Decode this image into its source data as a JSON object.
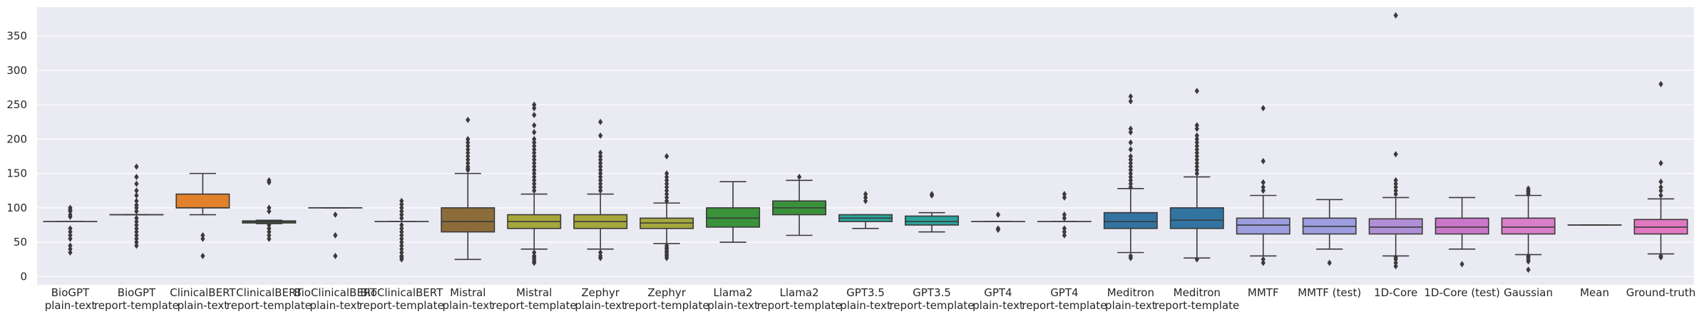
{
  "chart_data": {
    "type": "boxplot",
    "title": "",
    "xlabel": "",
    "ylabel": "",
    "ylim": [
      -12,
      392
    ],
    "yticks": [
      0,
      50,
      100,
      150,
      200,
      250,
      300,
      350
    ],
    "grid": "horizontal",
    "style": {
      "background": "#eaeaf2",
      "grid_color": "#ffffff",
      "line_color": "#3a3a3a"
    },
    "categories": [
      {
        "label": [
          "BioGPT",
          "plain-text"
        ],
        "color": "#3274a1",
        "q1": 80,
        "median": 80,
        "q3": 80,
        "whislo": 80,
        "whishi": 80,
        "fliers": [
          100,
          97,
          95,
          90,
          87,
          70,
          65,
          60,
          55,
          45,
          40,
          35
        ]
      },
      {
        "label": [
          "BioGPT",
          "report-template"
        ],
        "color": "#e1812c",
        "q1": 90,
        "median": 90,
        "q3": 90,
        "whislo": 90,
        "whishi": 90,
        "fliers": [
          160,
          145,
          135,
          125,
          118,
          110,
          104,
          100,
          95,
          85,
          80,
          75,
          70,
          65,
          60,
          55,
          50,
          45
        ]
      },
      {
        "label": [
          "ClinicalBERT",
          "plain-text"
        ],
        "color": "#e1812c",
        "q1": 100,
        "median": 100,
        "q3": 120,
        "whislo": 90,
        "whishi": 150,
        "fliers": [
          60,
          55,
          30
        ]
      },
      {
        "label": [
          "ClinicalBERT",
          "report-template"
        ],
        "color": "#3a923a",
        "q1": 78,
        "median": 80,
        "q3": 81,
        "whislo": 77,
        "whishi": 82,
        "fliers": [
          140,
          137,
          100,
          95,
          75,
          70,
          65,
          60,
          55
        ]
      },
      {
        "label": [
          "BioClinicalBERT",
          "plain-text"
        ],
        "color": "#c03d3e",
        "q1": 100,
        "median": 100,
        "q3": 100,
        "whislo": 100,
        "whishi": 100,
        "fliers": [
          90,
          60,
          30
        ]
      },
      {
        "label": [
          "BioClinicalBERT",
          "report-template"
        ],
        "color": "#9372b2",
        "q1": 80,
        "median": 80,
        "q3": 80,
        "whislo": 80,
        "whishi": 80,
        "fliers": [
          110,
          105,
          100,
          95,
          90,
          85,
          75,
          70,
          65,
          60,
          55,
          50,
          45,
          40,
          35,
          30,
          28,
          25
        ]
      },
      {
        "label": [
          "Mistral",
          "plain-text"
        ],
        "color": "#8c6d3a",
        "q1": 65,
        "median": 80,
        "q3": 100,
        "whislo": 25,
        "whishi": 150,
        "fliers": [
          228,
          200,
          195,
          190,
          185,
          180,
          175,
          170,
          165,
          160,
          157,
          155
        ]
      },
      {
        "label": [
          "Mistral",
          "report-template"
        ],
        "color": "#a6a73d",
        "q1": 70,
        "median": 80,
        "q3": 90,
        "whislo": 40,
        "whishi": 120,
        "fliers": [
          250,
          245,
          235,
          220,
          210,
          200,
          195,
          190,
          185,
          180,
          175,
          170,
          165,
          160,
          155,
          150,
          145,
          140,
          135,
          130,
          125,
          35,
          30,
          28,
          25,
          22,
          20
        ]
      },
      {
        "label": [
          "Zephyr",
          "plain-text"
        ],
        "color": "#a6a73d",
        "q1": 70,
        "median": 80,
        "q3": 90,
        "whislo": 40,
        "whishi": 120,
        "fliers": [
          225,
          205,
          180,
          175,
          170,
          165,
          160,
          155,
          150,
          145,
          140,
          135,
          130,
          125,
          35,
          30,
          27
        ]
      },
      {
        "label": [
          "Zephyr",
          "report-template"
        ],
        "color": "#a6a73d",
        "q1": 70,
        "median": 78,
        "q3": 85,
        "whislo": 48,
        "whishi": 107,
        "fliers": [
          175,
          150,
          145,
          140,
          135,
          130,
          125,
          120,
          115,
          110,
          45,
          42,
          40,
          37,
          35,
          32,
          30,
          27
        ]
      },
      {
        "label": [
          "Llama2",
          "plain-text"
        ],
        "color": "#3a923a",
        "q1": 72,
        "median": 85,
        "q3": 100,
        "whislo": 50,
        "whishi": 138,
        "fliers": []
      },
      {
        "label": [
          "Llama2",
          "report-template"
        ],
        "color": "#3a923a",
        "q1": 90,
        "median": 100,
        "q3": 110,
        "whislo": 60,
        "whishi": 140,
        "fliers": [
          145
        ]
      },
      {
        "label": [
          "GPT3.5",
          "plain-text"
        ],
        "color": "#2aa49c",
        "q1": 80,
        "median": 85,
        "q3": 90,
        "whislo": 70,
        "whishi": 90,
        "fliers": [
          120,
          115,
          110
        ]
      },
      {
        "label": [
          "GPT3.5",
          "report-template"
        ],
        "color": "#2aa49c",
        "q1": 75,
        "median": 80,
        "q3": 88,
        "whislo": 65,
        "whishi": 93,
        "fliers": [
          120,
          118
        ]
      },
      {
        "label": [
          "GPT4",
          "plain-text"
        ],
        "color": "#3274a1",
        "q1": 80,
        "median": 80,
        "q3": 80,
        "whislo": 80,
        "whishi": 80,
        "fliers": [
          90,
          70,
          68
        ]
      },
      {
        "label": [
          "GPT4",
          "report-template"
        ],
        "color": "#3274a1",
        "q1": 80,
        "median": 80,
        "q3": 80,
        "whislo": 80,
        "whishi": 80,
        "fliers": [
          120,
          115,
          90,
          85,
          70,
          65,
          60
        ]
      },
      {
        "label": [
          "Meditron",
          "plain-text"
        ],
        "color": "#3274a1",
        "q1": 70,
        "median": 80,
        "q3": 93,
        "whislo": 35,
        "whishi": 128,
        "fliers": [
          262,
          255,
          215,
          210,
          195,
          185,
          175,
          170,
          165,
          160,
          155,
          150,
          145,
          140,
          135,
          130,
          30,
          27
        ]
      },
      {
        "label": [
          "Meditron",
          "report-template"
        ],
        "color": "#3274a1",
        "q1": 70,
        "median": 82,
        "q3": 100,
        "whislo": 27,
        "whishi": 145,
        "fliers": [
          270,
          220,
          215,
          205,
          200,
          195,
          190,
          185,
          180,
          175,
          170,
          165,
          160,
          155,
          150,
          25
        ]
      },
      {
        "label": [
          "MMTF"
        ],
        "color": "#9c9ee0",
        "q1": 62,
        "median": 75,
        "q3": 85,
        "whislo": 30,
        "whishi": 118,
        "fliers": [
          245,
          168,
          137,
          130,
          125,
          25,
          20
        ]
      },
      {
        "label": [
          "MMTF (test)"
        ],
        "color": "#9c9ee0",
        "q1": 62,
        "median": 73,
        "q3": 85,
        "whislo": 40,
        "whishi": 112,
        "fliers": [
          20
        ]
      },
      {
        "label": [
          "1D-Core"
        ],
        "color": "#b08fd6",
        "q1": 62,
        "median": 72,
        "q3": 84,
        "whislo": 30,
        "whishi": 115,
        "fliers": [
          380,
          178,
          140,
          135,
          130,
          125,
          120,
          28,
          25,
          20,
          15
        ]
      },
      {
        "label": [
          "1D-Core (test)"
        ],
        "color": "#c978c9",
        "q1": 62,
        "median": 72,
        "q3": 85,
        "whislo": 40,
        "whishi": 115,
        "fliers": [
          18
        ]
      },
      {
        "label": [
          "Gaussian"
        ],
        "color": "#d97fc9",
        "q1": 62,
        "median": 72,
        "q3": 85,
        "whislo": 32,
        "whishi": 118,
        "fliers": [
          128,
          125,
          123,
          120,
          30,
          28,
          25,
          22,
          10
        ]
      },
      {
        "label": [
          "Mean"
        ],
        "color": "#8c8c8c",
        "q1": 75,
        "median": 75,
        "q3": 75,
        "whislo": 75,
        "whishi": 75,
        "fliers": []
      },
      {
        "label": [
          "Ground-truth"
        ],
        "color": "#e377c2",
        "q1": 62,
        "median": 72,
        "q3": 83,
        "whislo": 33,
        "whishi": 113,
        "fliers": [
          280,
          165,
          138,
          130,
          125,
          118,
          30,
          28
        ]
      }
    ]
  }
}
